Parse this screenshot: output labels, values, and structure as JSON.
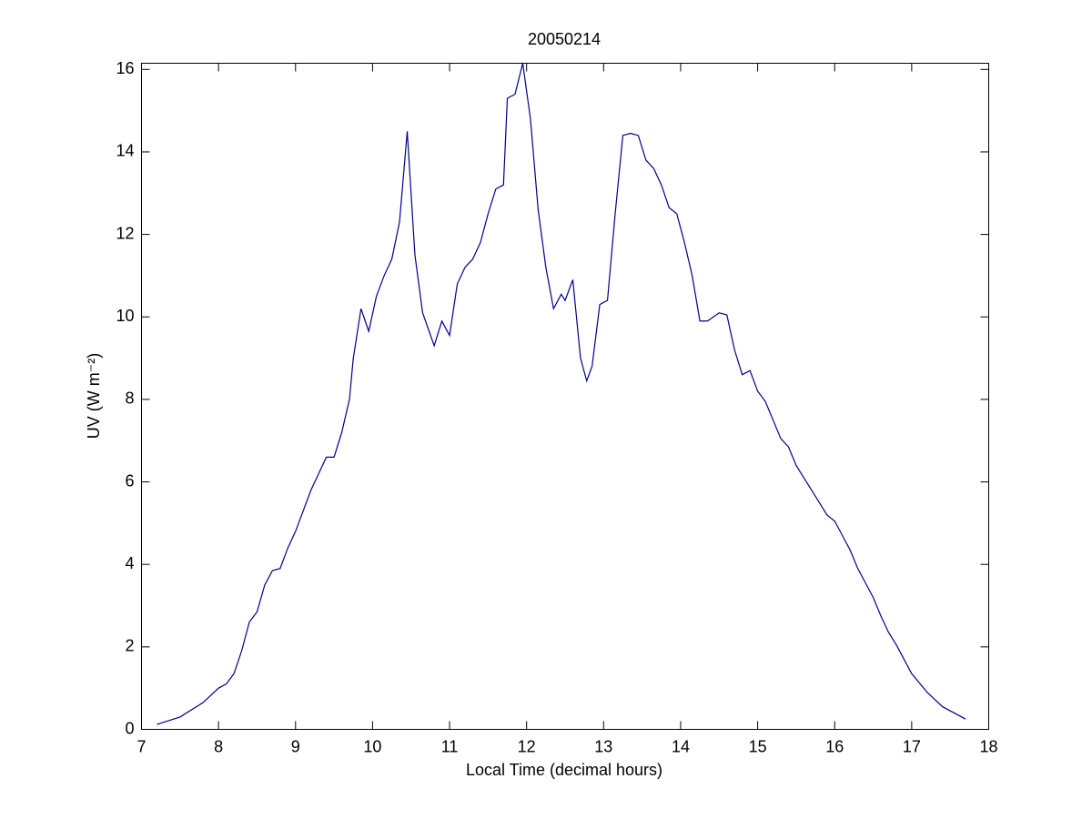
{
  "chart_data": {
    "type": "line",
    "title": "20050214",
    "xlabel": "Local Time (decimal hours)",
    "ylabel": "UV (W m⁻²)",
    "xlim": [
      7,
      18
    ],
    "xticks": [
      7,
      8,
      9,
      10,
      11,
      12,
      13,
      14,
      15,
      16,
      17,
      18
    ],
    "ylim": [
      0,
      16.15
    ],
    "yticks": [
      0,
      2,
      4,
      6,
      8,
      10,
      12,
      14,
      16
    ],
    "color": "#00008b",
    "x": [
      7.2,
      7.5,
      7.8,
      8.0,
      8.1,
      8.2,
      8.3,
      8.4,
      8.5,
      8.6,
      8.7,
      8.8,
      8.9,
      9.0,
      9.1,
      9.2,
      9.3,
      9.4,
      9.5,
      9.6,
      9.7,
      9.75,
      9.85,
      9.95,
      10.05,
      10.15,
      10.25,
      10.35,
      10.45,
      10.55,
      10.65,
      10.8,
      10.9,
      11.0,
      11.1,
      11.2,
      11.3,
      11.4,
      11.5,
      11.6,
      11.7,
      11.75,
      11.85,
      11.95,
      12.05,
      12.15,
      12.25,
      12.35,
      12.45,
      12.5,
      12.6,
      12.7,
      12.78,
      12.85,
      12.95,
      13.05,
      13.15,
      13.25,
      13.35,
      13.45,
      13.55,
      13.65,
      13.75,
      13.85,
      13.95,
      14.05,
      14.15,
      14.25,
      14.35,
      14.5,
      14.6,
      14.7,
      14.8,
      14.9,
      15.0,
      15.1,
      15.2,
      15.3,
      15.4,
      15.5,
      15.6,
      15.7,
      15.8,
      15.9,
      16.0,
      16.1,
      16.2,
      16.3,
      16.4,
      16.5,
      16.6,
      16.7,
      16.8,
      16.9,
      17.0,
      17.2,
      17.4,
      17.7
    ],
    "values": [
      0.12,
      0.3,
      0.65,
      1.0,
      1.1,
      1.35,
      1.9,
      2.6,
      2.85,
      3.5,
      3.85,
      3.9,
      4.4,
      4.8,
      5.3,
      5.8,
      6.2,
      6.6,
      6.6,
      7.2,
      8.0,
      9.0,
      10.2,
      9.65,
      10.5,
      11.0,
      11.4,
      12.3,
      14.5,
      11.5,
      10.1,
      9.3,
      9.9,
      9.55,
      10.8,
      11.2,
      11.4,
      11.8,
      12.5,
      13.1,
      13.2,
      15.3,
      15.4,
      16.15,
      14.8,
      12.6,
      11.2,
      10.2,
      10.55,
      10.4,
      10.9,
      9.0,
      8.45,
      8.8,
      10.3,
      10.4,
      12.5,
      14.4,
      14.45,
      14.4,
      13.8,
      13.6,
      13.2,
      12.65,
      12.5,
      11.8,
      11.0,
      9.9,
      9.9,
      10.1,
      10.05,
      9.2,
      8.6,
      8.7,
      8.2,
      7.95,
      7.5,
      7.05,
      6.85,
      6.4,
      6.1,
      5.8,
      5.5,
      5.2,
      5.05,
      4.7,
      4.35,
      3.9,
      3.55,
      3.2,
      2.75,
      2.35,
      2.05,
      1.7,
      1.35,
      0.9,
      0.55,
      0.25
    ]
  }
}
